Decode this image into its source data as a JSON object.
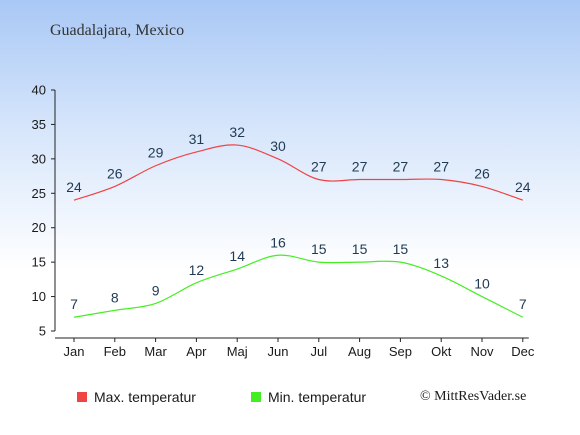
{
  "header": {
    "location": "Guadalajara, Mexico"
  },
  "chart_data": {
    "type": "line",
    "categories": [
      "Jan",
      "Feb",
      "Mar",
      "Apr",
      "Maj",
      "Jun",
      "Jul",
      "Aug",
      "Sep",
      "Okt",
      "Nov",
      "Dec"
    ],
    "ylim": [
      5,
      40
    ],
    "yticks": [
      5,
      10,
      15,
      20,
      25,
      30,
      35,
      40
    ],
    "grid": false,
    "legend_position": "bottom",
    "series": [
      {
        "name": "Max. temperatur",
        "color": "#ee4444",
        "values": [
          24,
          26,
          29,
          31,
          32,
          30,
          27,
          27,
          27,
          27,
          26,
          24
        ]
      },
      {
        "name": "Min. temperatur",
        "color": "#44ee22",
        "values": [
          7,
          8,
          9,
          12,
          14,
          16,
          15,
          15,
          15,
          13,
          10,
          7
        ]
      }
    ]
  },
  "credit": "© MittResVader.se"
}
